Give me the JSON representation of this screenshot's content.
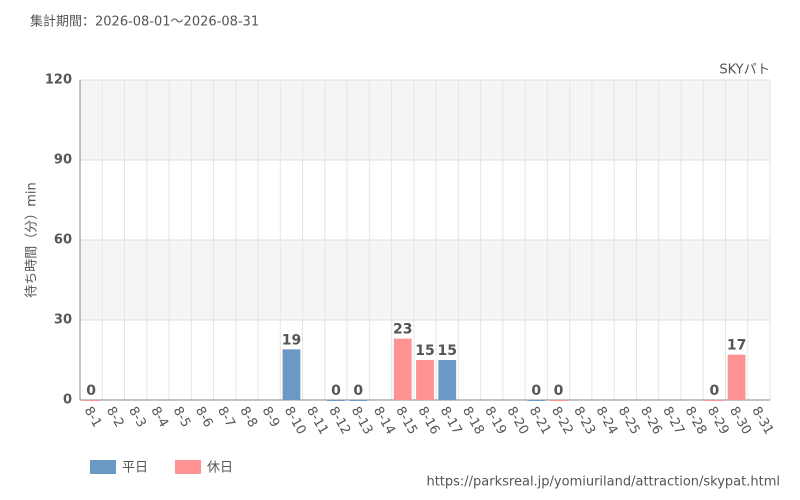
{
  "chart_data": {
    "type": "bar",
    "title": "集計期間：2026-08-01〜2026-08-31",
    "subtitle": "SKYパト",
    "y_label": "待ち時間（分）min",
    "source": "https://parksreal.jp/yomiuriland/attraction/skypat.html",
    "categories": [
      "8-1",
      "8-2",
      "8-3",
      "8-4",
      "8-5",
      "8-6",
      "8-7",
      "8-8",
      "8-9",
      "8-10",
      "8-11",
      "8-12",
      "8-13",
      "8-14",
      "8-15",
      "8-16",
      "8-17",
      "8-18",
      "8-19",
      "8-20",
      "8-21",
      "8-22",
      "8-23",
      "8-24",
      "8-25",
      "8-26",
      "8-27",
      "8-28",
      "8-29",
      "8-30",
      "8-31"
    ],
    "category_colors": [
      "#f08080",
      "#f08080",
      "#444",
      "#444",
      "#444",
      "#444",
      "#444",
      "#f08080",
      "#f08080",
      "#444",
      "#f08080",
      "#444",
      "#444",
      "#444",
      "#f08080",
      "#f08080",
      "#444",
      "#444",
      "#444",
      "#444",
      "#444",
      "#f08080",
      "#f08080",
      "#444",
      "#444",
      "#444",
      "#444",
      "#444",
      "#f08080",
      "#f08080",
      "#444"
    ],
    "series": [
      {
        "name": "平日",
        "color": "#6a9ac4",
        "values": [
          null,
          null,
          null,
          null,
          null,
          null,
          null,
          null,
          null,
          19,
          null,
          0,
          0,
          null,
          null,
          null,
          15,
          null,
          null,
          null,
          0,
          null,
          null,
          null,
          null,
          null,
          null,
          null,
          null,
          null,
          null
        ]
      },
      {
        "name": "休日",
        "color": "#ff9393",
        "values": [
          0,
          null,
          null,
          null,
          null,
          null,
          null,
          null,
          null,
          null,
          null,
          null,
          null,
          null,
          23,
          15,
          null,
          null,
          null,
          null,
          null,
          0,
          null,
          null,
          null,
          null,
          null,
          null,
          0,
          17,
          null
        ]
      }
    ],
    "ylim": [
      0,
      120
    ],
    "yticks": [
      0,
      30,
      60,
      90,
      120
    ],
    "grid": true
  }
}
